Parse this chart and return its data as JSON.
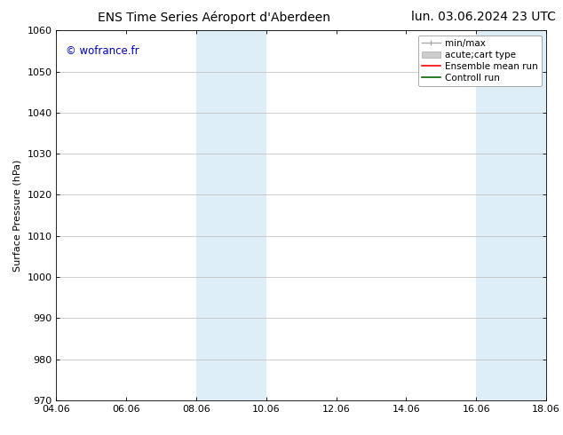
{
  "title_left": "ENS Time Series Aéroport d'Aberdeen",
  "title_right": "lun. 03.06.2024 23 UTC",
  "ylabel": "Surface Pressure (hPa)",
  "xlabel_ticks": [
    "04.06",
    "06.06",
    "08.06",
    "10.06",
    "12.06",
    "14.06",
    "16.06",
    "18.06"
  ],
  "xtick_positions": [
    0,
    2,
    4,
    6,
    8,
    10,
    12,
    14
  ],
  "xlim": [
    0,
    14
  ],
  "ylim": [
    970,
    1060
  ],
  "yticks": [
    970,
    980,
    990,
    1000,
    1010,
    1020,
    1030,
    1040,
    1050,
    1060
  ],
  "shaded_bands": [
    {
      "x_start": 4,
      "x_end": 6,
      "color": "#ddeef8"
    },
    {
      "x_start": 12,
      "x_end": 14,
      "color": "#ddeef8"
    }
  ],
  "background_color": "#ffffff",
  "watermark_text": "© wofrance.fr",
  "watermark_color": "#0000bb",
  "grid_color": "#bbbbbb",
  "title_fontsize": 10,
  "axis_fontsize": 8,
  "tick_fontsize": 8,
  "legend_fontsize": 7.5
}
